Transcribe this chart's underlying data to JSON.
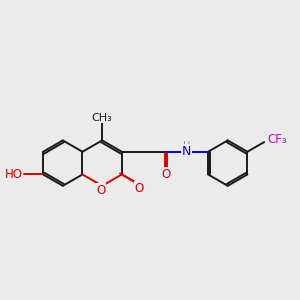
{
  "bg": "#ebebeb",
  "bond_color": "#1a1a1a",
  "O_color": "#dd0000",
  "N_color": "#0000ee",
  "F_color": "#cc00cc",
  "figsize": [
    3.0,
    3.0
  ],
  "dpi": 100,
  "S": 0.78,
  "xlim": [
    0,
    10
  ],
  "ylim": [
    1.5,
    8.5
  ]
}
